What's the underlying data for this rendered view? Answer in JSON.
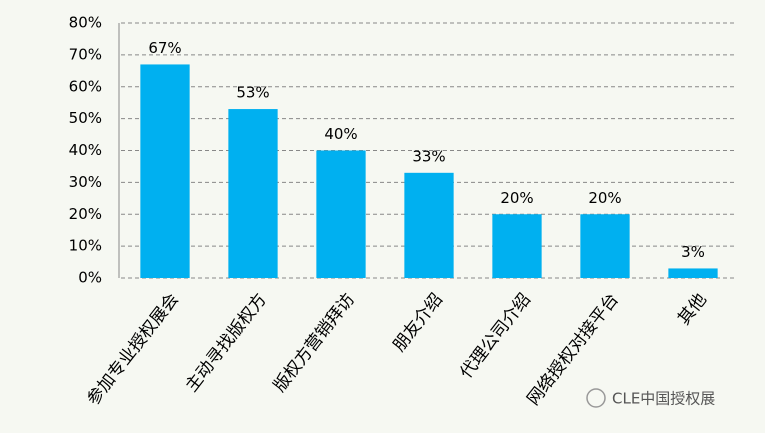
{
  "chart_data": {
    "type": "bar",
    "categories": [
      "参加专业授权展会",
      "主动寻找版权方",
      "版权方营销拜访",
      "朋友介绍",
      "代理公司介绍",
      "网络授权对接平台",
      "其他"
    ],
    "values": [
      67,
      53,
      40,
      33,
      20,
      20,
      3
    ],
    "value_labels": [
      "67%",
      "53%",
      "40%",
      "33%",
      "20%",
      "20%",
      "3%"
    ],
    "color": "#00b0f0",
    "ylim": [
      0,
      80
    ],
    "yticks": [
      {
        "value": 0,
        "label": "0%"
      },
      {
        "value": 10,
        "label": "10%"
      },
      {
        "value": 20,
        "label": "20%"
      },
      {
        "value": 30,
        "label": "30%"
      },
      {
        "value": 40,
        "label": "40%"
      },
      {
        "value": 50,
        "label": "50%"
      },
      {
        "value": 60,
        "label": "60%"
      },
      {
        "value": 70,
        "label": "70%"
      },
      {
        "value": 80,
        "label": "80%"
      }
    ],
    "grid": true,
    "watermark": "CLE中国授权展"
  }
}
